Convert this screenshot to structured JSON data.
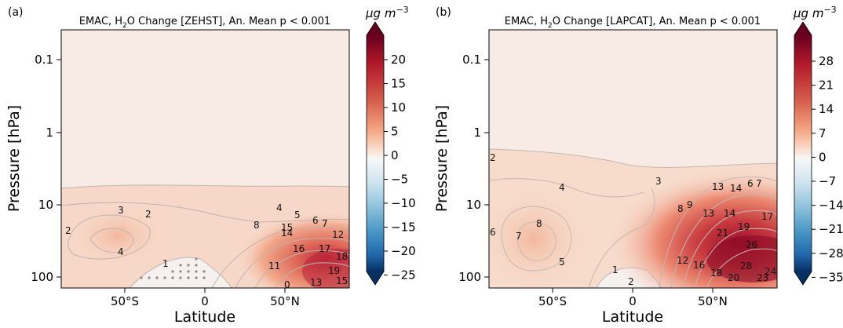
{
  "figure": {
    "panels": [
      {
        "letter": "(a)",
        "title_prefix": "EMAC, H",
        "title_sub": "2",
        "title_suffix": "O Change [ZEHST], An. Mean p < 0.001",
        "units": "µg m",
        "units_exp": "−3"
      },
      {
        "letter": "(b)",
        "title_prefix": "EMAC, H",
        "title_sub": "2",
        "title_suffix": "O Change [LAPCAT], An. Mean p < 0.001",
        "units": "µg m",
        "units_exp": "−3"
      }
    ]
  },
  "chart_data": [
    {
      "type": "heatmap",
      "panel": "(a)",
      "xlabel": "Latitude",
      "ylabel": "Pressure [hPa]",
      "xlim": [
        -90,
        90
      ],
      "ylim": [
        150,
        0.04
      ],
      "y_scale": "log",
      "x_ticks": [
        "50°S",
        "0",
        "50°N"
      ],
      "y_ticks": [
        "0.1",
        "1",
        "10",
        "100"
      ],
      "colorbar": {
        "range": [
          -25,
          23
        ],
        "ticks": [
          "20",
          "15",
          "10",
          "5",
          "0",
          "−5",
          "−10",
          "−15",
          "−20",
          "−25"
        ],
        "colormap": "RdBu_r"
      },
      "contour_labels": [
        "2",
        "3",
        "2",
        "4",
        "1",
        "4",
        "5",
        "6",
        "7",
        "8",
        "15",
        "14",
        "12",
        "16",
        "17",
        "18",
        "11",
        "19",
        "13",
        "15",
        "0"
      ],
      "colors": {
        "max": "#67001f",
        "high": "#d6604d",
        "mid": "#f4a582",
        "low": "#fbe2d4",
        "zero": "#f7f7f7",
        "neg": "#92c5de",
        "min": "#053061"
      }
    },
    {
      "type": "heatmap",
      "panel": "(b)",
      "xlabel": "Latitude",
      "ylabel": "Pressure [hPa]",
      "xlim": [
        -90,
        90
      ],
      "ylim": [
        150,
        0.04
      ],
      "y_scale": "log",
      "x_ticks": [
        "50°S",
        "0",
        "50°N"
      ],
      "y_ticks": [
        "0.1",
        "1",
        "10",
        "100"
      ],
      "colorbar": {
        "range": [
          -35,
          32
        ],
        "ticks": [
          "28",
          "21",
          "14",
          "7",
          "0",
          "−7",
          "−14",
          "−21",
          "−28",
          "−35"
        ],
        "colormap": "RdBu_r"
      },
      "contour_labels": [
        "2",
        "4",
        "8",
        "7",
        "5",
        "6",
        "1",
        "2",
        "3",
        "8",
        "9",
        "13",
        "14",
        "6",
        "7",
        "13",
        "14",
        "17",
        "21",
        "19",
        "26",
        "12",
        "16",
        "18",
        "20",
        "28",
        "23",
        "24"
      ],
      "colors": {
        "max": "#67001f",
        "high": "#b2182b",
        "mid": "#f4a582",
        "low": "#fbe2d4",
        "zero": "#f7f7f7",
        "neg": "#92c5de",
        "min": "#053061"
      }
    }
  ]
}
